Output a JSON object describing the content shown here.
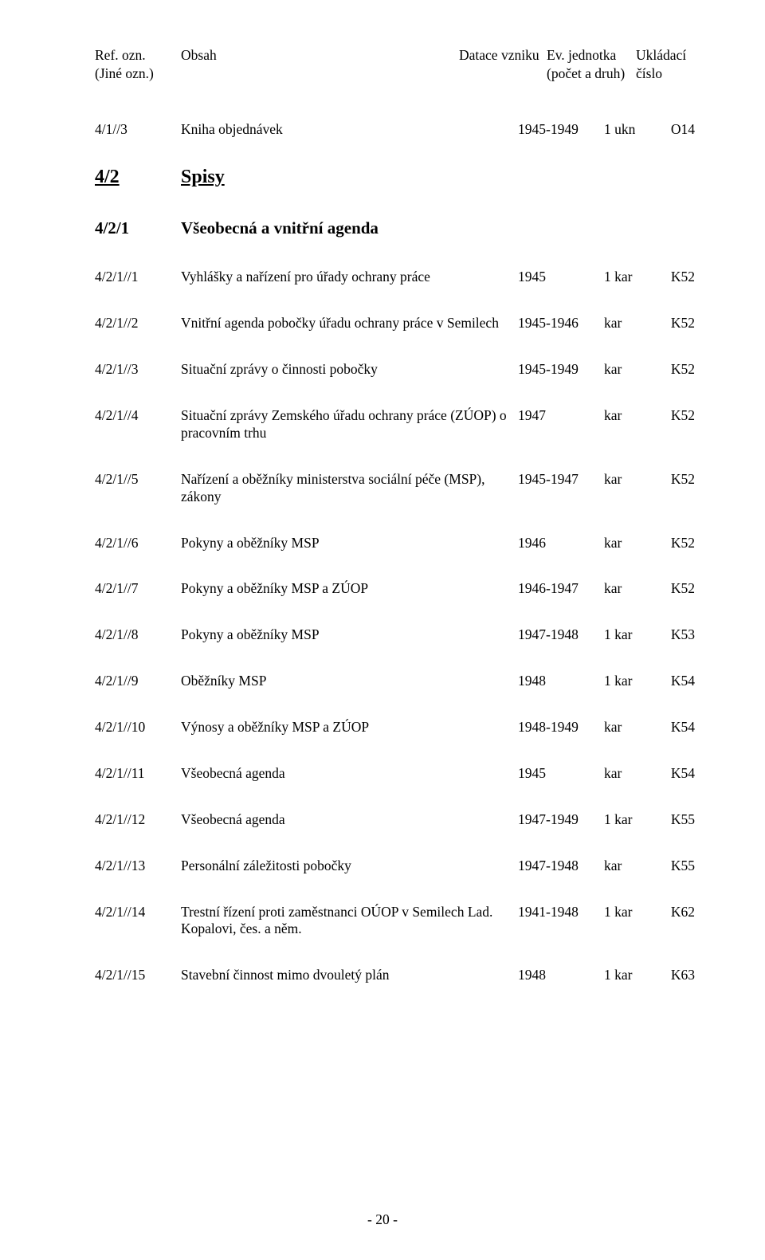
{
  "header": {
    "col1_line1": "Ref. ozn.",
    "col1_line2": "(Jiné ozn.)",
    "col2_line1": "Obsah",
    "col3_line1": "Datace vzniku",
    "col4_line1": "Ev. jednotka",
    "col4_line2": "(počet a druh)",
    "col5_line1": "Ukládací",
    "col5_line2": "číslo"
  },
  "section": {
    "ref": "4/2",
    "title": "Spisy"
  },
  "subsection": {
    "ref": "4/2/1",
    "title": "Všeobecná a vnitřní agenda"
  },
  "entries": [
    {
      "ref": "4/1//3",
      "content": "Kniha objednávek",
      "date": "1945-1949",
      "unit": "1 ukn",
      "loc": "O14",
      "pre_section": true
    },
    {
      "ref": "4/2/1//1",
      "content": "Vyhlášky a nařízení pro úřady ochrany práce",
      "date": "1945",
      "unit": "1 kar",
      "loc": "K52"
    },
    {
      "ref": "4/2/1//2",
      "content": "Vnitřní agenda pobočky úřadu ochrany práce v Semilech",
      "date": "1945-1946",
      "unit": "kar",
      "loc": "K52"
    },
    {
      "ref": "4/2/1//3",
      "content": "Situační zprávy o činnosti pobočky",
      "date": "1945-1949",
      "unit": "kar",
      "loc": "K52"
    },
    {
      "ref": "4/2/1//4",
      "content": "Situační zprávy Zemského úřadu ochrany práce (ZÚOP) o pracovním trhu",
      "date": "1947",
      "unit": "kar",
      "loc": "K52"
    },
    {
      "ref": "4/2/1//5",
      "content": "Nařízení a oběžníky ministerstva sociální péče (MSP), zákony",
      "date": "1945-1947",
      "unit": "kar",
      "loc": "K52"
    },
    {
      "ref": "4/2/1//6",
      "content": "Pokyny a oběžníky MSP",
      "date": "1946",
      "unit": "kar",
      "loc": "K52"
    },
    {
      "ref": "4/2/1//7",
      "content": "Pokyny a oběžníky MSP a ZÚOP",
      "date": "1946-1947",
      "unit": "kar",
      "loc": "K52"
    },
    {
      "ref": "4/2/1//8",
      "content": "Pokyny a oběžníky MSP",
      "date": "1947-1948",
      "unit": "1 kar",
      "loc": "K53"
    },
    {
      "ref": "4/2/1//9",
      "content": "Oběžníky MSP",
      "date": "1948",
      "unit": "1 kar",
      "loc": "K54"
    },
    {
      "ref": "4/2/1//10",
      "content": "Výnosy a oběžníky MSP a  ZÚOP",
      "date": "1948-1949",
      "unit": "kar",
      "loc": "K54"
    },
    {
      "ref": "4/2/1//11",
      "content": "Všeobecná agenda",
      "date": "1945",
      "unit": "kar",
      "loc": "K54"
    },
    {
      "ref": "4/2/1//12",
      "content": "Všeobecná agenda",
      "date": "1947-1949",
      "unit": "1 kar",
      "loc": "K55"
    },
    {
      "ref": "4/2/1//13",
      "content": "Personální záležitosti pobočky",
      "date": "1947-1948",
      "unit": "kar",
      "loc": "K55"
    },
    {
      "ref": "4/2/1//14",
      "content": "Trestní řízení proti zaměstnanci OÚOP v Semilech Lad. Kopalovi, čes. a něm.",
      "date": "1941-1948",
      "unit": "1 kar",
      "loc": "K62"
    },
    {
      "ref": "4/2/1//15",
      "content": "Stavební činnost mimo dvouletý plán",
      "date": "1948",
      "unit": "1 kar",
      "loc": "K63",
      "last": true
    }
  ],
  "page_number": "- 20 -"
}
